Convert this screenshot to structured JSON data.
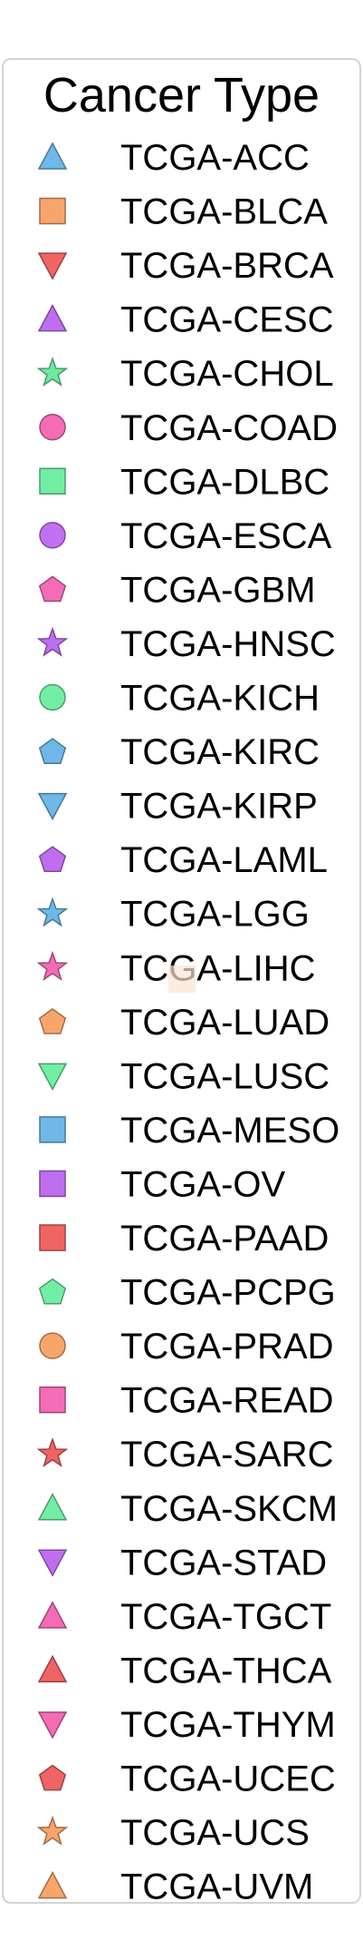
{
  "chart_data": {
    "type": "scatter",
    "legend": {
      "title": "Cancer Type",
      "placement": "standalone",
      "entries": [
        {
          "label": "TCGA-ACC",
          "marker": "triangle-up",
          "color": "#6fb8e8"
        },
        {
          "label": "TCGA-BLCA",
          "marker": "square",
          "color": "#f8a56c"
        },
        {
          "label": "TCGA-BRCA",
          "marker": "triangle-down",
          "color": "#f06464"
        },
        {
          "label": "TCGA-CESC",
          "marker": "triangle-up",
          "color": "#bf6ef0"
        },
        {
          "label": "TCGA-CHOL",
          "marker": "star",
          "color": "#6fe8a0"
        },
        {
          "label": "TCGA-COAD",
          "marker": "circle",
          "color": "#f46cb6"
        },
        {
          "label": "TCGA-DLBC",
          "marker": "square",
          "color": "#72eea4"
        },
        {
          "label": "TCGA-ESCA",
          "marker": "circle",
          "color": "#c070f0"
        },
        {
          "label": "TCGA-GBM",
          "marker": "pentagon",
          "color": "#f46cb6"
        },
        {
          "label": "TCGA-HNSC",
          "marker": "star",
          "color": "#bf6ef0"
        },
        {
          "label": "TCGA-KICH",
          "marker": "circle",
          "color": "#72eea4"
        },
        {
          "label": "TCGA-KIRC",
          "marker": "pentagon",
          "color": "#6fb8e8"
        },
        {
          "label": "TCGA-KIRP",
          "marker": "triangle-down",
          "color": "#6fb8e8"
        },
        {
          "label": "TCGA-LAML",
          "marker": "pentagon",
          "color": "#bf6ef0"
        },
        {
          "label": "TCGA-LGG",
          "marker": "star",
          "color": "#6fb8e8"
        },
        {
          "label": "TCGA-LIHC",
          "marker": "star",
          "color": "#f46cb6"
        },
        {
          "label": "TCGA-LUAD",
          "marker": "pentagon",
          "color": "#f8a56c"
        },
        {
          "label": "TCGA-LUSC",
          "marker": "triangle-down",
          "color": "#72eea4"
        },
        {
          "label": "TCGA-MESO",
          "marker": "square",
          "color": "#6fb8e8"
        },
        {
          "label": "TCGA-OV",
          "marker": "square",
          "color": "#bf6ef0"
        },
        {
          "label": "TCGA-PAAD",
          "marker": "square",
          "color": "#f06464"
        },
        {
          "label": "TCGA-PCPG",
          "marker": "pentagon",
          "color": "#72eea4"
        },
        {
          "label": "TCGA-PRAD",
          "marker": "circle",
          "color": "#f8a56c"
        },
        {
          "label": "TCGA-READ",
          "marker": "square",
          "color": "#f46cb6"
        },
        {
          "label": "TCGA-SARC",
          "marker": "star",
          "color": "#f06464"
        },
        {
          "label": "TCGA-SKCM",
          "marker": "triangle-up",
          "color": "#72eea4"
        },
        {
          "label": "TCGA-STAD",
          "marker": "triangle-down",
          "color": "#bf6ef0"
        },
        {
          "label": "TCGA-TGCT",
          "marker": "triangle-up",
          "color": "#f46cb6"
        },
        {
          "label": "TCGA-THCA",
          "marker": "triangle-up",
          "color": "#f06464"
        },
        {
          "label": "TCGA-THYM",
          "marker": "triangle-down",
          "color": "#f46cb6"
        },
        {
          "label": "TCGA-UCEC",
          "marker": "pentagon",
          "color": "#f06464"
        },
        {
          "label": "TCGA-UCS",
          "marker": "star",
          "color": "#f8a56c"
        },
        {
          "label": "TCGA-UVM",
          "marker": "triangle-up",
          "color": "#f8a56c"
        }
      ]
    }
  }
}
